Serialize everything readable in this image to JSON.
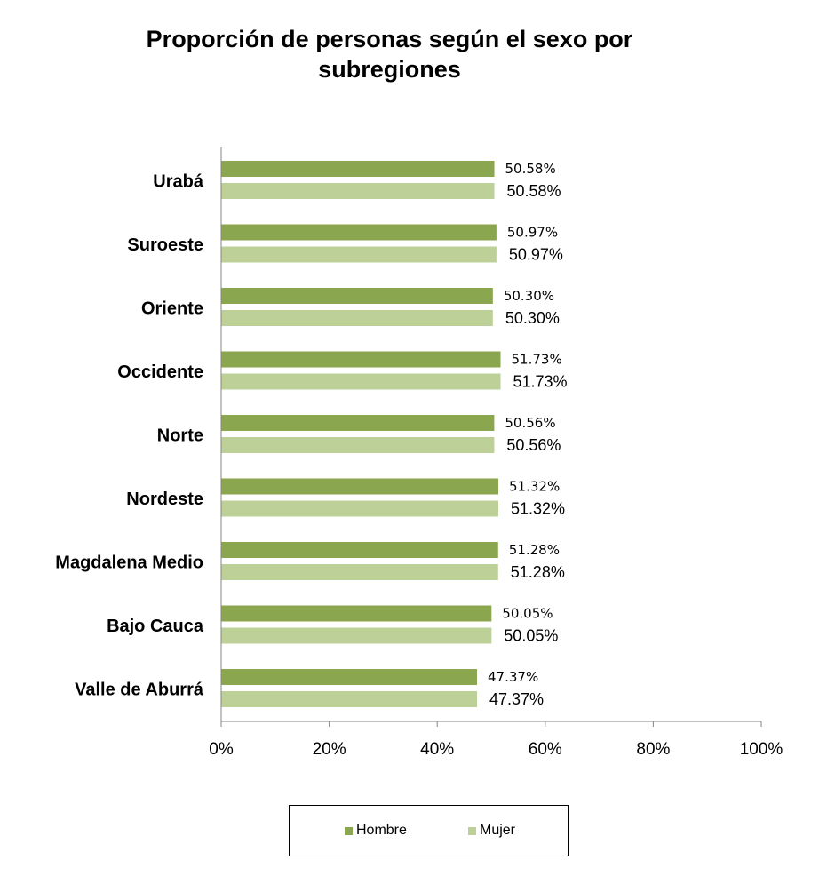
{
  "chart_data": {
    "type": "bar",
    "orientation": "horizontal",
    "title_lines": [
      "Proporción de personas según el sexo  por",
      "subregiones"
    ],
    "categories": [
      "Urabá",
      "Suroeste",
      "Oriente",
      "Occidente",
      "Norte",
      "Nordeste",
      "Magdalena Medio",
      "Bajo Cauca",
      "Valle de Aburrá"
    ],
    "series": [
      {
        "name": "Hombre",
        "color": "#8aa64e",
        "values": [
          50.58,
          50.97,
          50.3,
          51.73,
          50.56,
          51.32,
          51.28,
          50.05,
          47.37
        ],
        "labels": [
          "50.58%",
          "50.97%",
          "50.30%",
          "51.73%",
          "50.56%",
          "51.32%",
          "51.28%",
          "50.05%",
          "47.37%"
        ]
      },
      {
        "name": "Mujer",
        "color": "#bcd097",
        "values": [
          50.58,
          50.97,
          50.3,
          51.73,
          50.56,
          51.32,
          51.28,
          50.05,
          47.37
        ],
        "labels": [
          "50.58%",
          "50.97%",
          "50.30%",
          "51.73%",
          "50.56%",
          "51.32%",
          "51.28%",
          "50.05%",
          "47.37%"
        ]
      }
    ],
    "xlim": [
      0,
      100
    ],
    "xticks": [
      0,
      20,
      40,
      60,
      80,
      100
    ],
    "xtick_labels": [
      "0%",
      "20%",
      "40%",
      "60%",
      "80%",
      "100%"
    ],
    "grid": false,
    "legend_position": "bottom",
    "xlabel": "",
    "ylabel": ""
  }
}
